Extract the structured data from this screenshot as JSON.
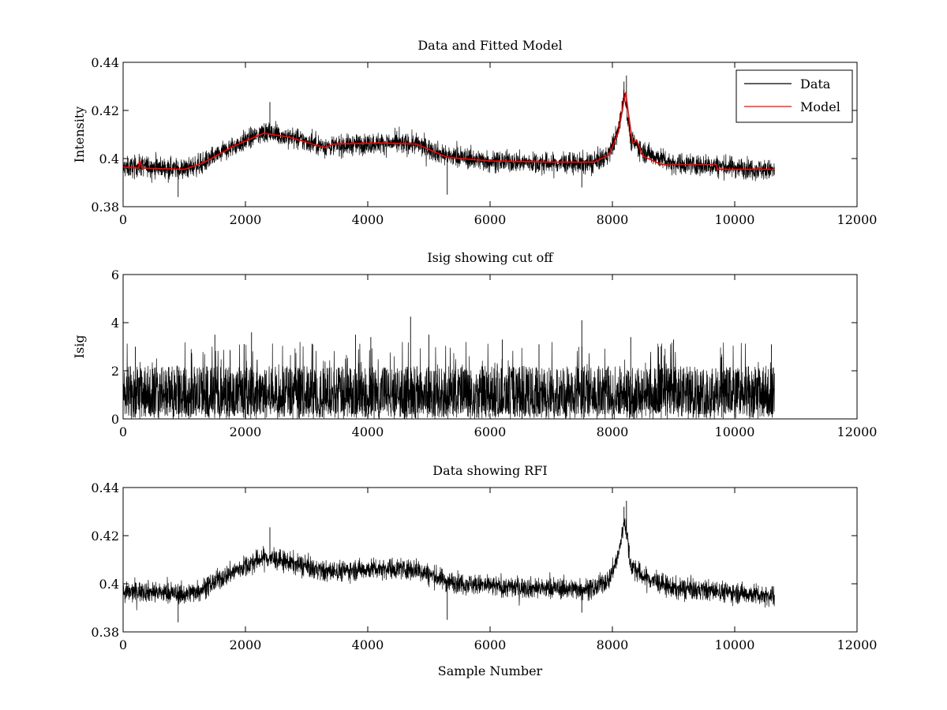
{
  "chart_data": [
    {
      "type": "line",
      "title": "Data and Fitted Model",
      "xlabel": "",
      "ylabel": "Intensity",
      "xlim": [
        0,
        12000
      ],
      "ylim": [
        0.38,
        0.44
      ],
      "xticks": [
        0,
        2000,
        4000,
        6000,
        8000,
        10000,
        12000
      ],
      "xtick_labels": [
        "0",
        "2000",
        "4000",
        "6000",
        "8000",
        "10000",
        "12000"
      ],
      "yticks": [
        0.38,
        0.4,
        0.42,
        0.44
      ],
      "ytick_labels": [
        "0.38",
        "0.4",
        "0.42",
        "0.44"
      ],
      "legend": {
        "placement": "top-right",
        "entries": [
          "Data",
          "Model"
        ]
      },
      "series": [
        {
          "name": "Data",
          "color": "#000000",
          "render": "noisy_band",
          "x_end": 10650,
          "noise": 0.0038,
          "envelope": [
            [
              0,
              0.396
            ],
            [
              300,
              0.397
            ],
            [
              1000,
              0.3955
            ],
            [
              1300,
              0.398
            ],
            [
              1800,
              0.405
            ],
            [
              2300,
              0.411
            ],
            [
              2700,
              0.409
            ],
            [
              3300,
              0.405
            ],
            [
              3600,
              0.4055
            ],
            [
              4200,
              0.4065
            ],
            [
              4800,
              0.406
            ],
            [
              5300,
              0.401
            ],
            [
              6000,
              0.399
            ],
            [
              7000,
              0.398
            ],
            [
              7700,
              0.398
            ],
            [
              7950,
              0.402
            ],
            [
              8100,
              0.412
            ],
            [
              8200,
              0.427
            ],
            [
              8300,
              0.408
            ],
            [
              8500,
              0.403
            ],
            [
              9000,
              0.398
            ],
            [
              9700,
              0.397
            ],
            [
              10650,
              0.395
            ]
          ],
          "spikes": [
            [
              2400,
              0.4235
            ],
            [
              8230,
              0.4345
            ],
            [
              8190,
              0.432
            ],
            [
              5300,
              0.385
            ],
            [
              7500,
              0.388
            ],
            [
              900,
              0.384
            ]
          ]
        },
        {
          "name": "Model",
          "color": "#ff0000",
          "render": "smooth_line",
          "x_end": 10650,
          "points": [
            [
              0,
              0.3965
            ],
            [
              250,
              0.396
            ],
            [
              280,
              0.399
            ],
            [
              310,
              0.396
            ],
            [
              1000,
              0.3955
            ],
            [
              1300,
              0.398
            ],
            [
              1800,
              0.405
            ],
            [
              2300,
              0.4105
            ],
            [
              2700,
              0.409
            ],
            [
              3300,
              0.4045
            ],
            [
              3450,
              0.406
            ],
            [
              4200,
              0.4065
            ],
            [
              4800,
              0.406
            ],
            [
              5300,
              0.4005
            ],
            [
              6000,
              0.399
            ],
            [
              7000,
              0.3985
            ],
            [
              7700,
              0.3985
            ],
            [
              7950,
              0.4015
            ],
            [
              8100,
              0.411
            ],
            [
              8180,
              0.4225
            ],
            [
              8220,
              0.4275
            ],
            [
              8260,
              0.419
            ],
            [
              8330,
              0.4065
            ],
            [
              8400,
              0.4075
            ],
            [
              8500,
              0.401
            ],
            [
              8800,
              0.3975
            ],
            [
              9000,
              0.3975
            ],
            [
              9700,
              0.3975
            ],
            [
              9720,
              0.3955
            ],
            [
              10650,
              0.3955
            ]
          ]
        }
      ]
    },
    {
      "type": "line",
      "title": "Isig showing cut off",
      "xlabel": "",
      "ylabel": "Isig",
      "xlim": [
        0,
        12000
      ],
      "ylim": [
        0,
        6
      ],
      "xticks": [
        0,
        2000,
        4000,
        6000,
        8000,
        10000,
        12000
      ],
      "xtick_labels": [
        "0",
        "2000",
        "4000",
        "6000",
        "8000",
        "10000",
        "12000"
      ],
      "yticks": [
        0,
        2,
        4,
        6
      ],
      "ytick_labels": [
        "0",
        "2",
        "4",
        "6"
      ],
      "series": [
        {
          "name": "Isig",
          "color": "#000000",
          "render": "spiky_band",
          "x_end": 10650,
          "base_low": 0.2,
          "base_high": 2.1,
          "spikes": [
            [
              4700,
              4.25
            ],
            [
              7500,
              4.1
            ],
            [
              1500,
              3.5
            ],
            [
              2100,
              3.6
            ],
            [
              3800,
              3.5
            ],
            [
              4050,
              3.4
            ],
            [
              5000,
              3.5
            ],
            [
              6200,
              3.3
            ],
            [
              8300,
              3.4
            ],
            [
              9000,
              3.3
            ],
            [
              10600,
              3.1
            ],
            [
              200,
              3.0
            ],
            [
              3100,
              3.1
            ],
            [
              6800,
              3.1
            ]
          ]
        }
      ]
    },
    {
      "type": "line",
      "title": "Data showing RFI",
      "xlabel": "Sample Number",
      "ylabel": "",
      "xlim": [
        0,
        12000
      ],
      "ylim": [
        0.38,
        0.44
      ],
      "xticks": [
        0,
        2000,
        4000,
        6000,
        8000,
        10000,
        12000
      ],
      "xtick_labels": [
        "0",
        "2000",
        "4000",
        "6000",
        "8000",
        "10000",
        "12000"
      ],
      "yticks": [
        0.38,
        0.4,
        0.42,
        0.44
      ],
      "ytick_labels": [
        "0.38",
        "0.4",
        "0.42",
        "0.44"
      ],
      "series": [
        {
          "name": "Data",
          "color": "#000000",
          "render": "noisy_band",
          "x_end": 10650,
          "noise": 0.0038,
          "envelope": [
            [
              0,
              0.396
            ],
            [
              300,
              0.397
            ],
            [
              1000,
              0.3955
            ],
            [
              1300,
              0.398
            ],
            [
              1800,
              0.405
            ],
            [
              2300,
              0.411
            ],
            [
              2700,
              0.409
            ],
            [
              3300,
              0.405
            ],
            [
              3600,
              0.4055
            ],
            [
              4200,
              0.4065
            ],
            [
              4800,
              0.406
            ],
            [
              5300,
              0.401
            ],
            [
              6000,
              0.399
            ],
            [
              7000,
              0.398
            ],
            [
              7700,
              0.398
            ],
            [
              7950,
              0.402
            ],
            [
              8100,
              0.412
            ],
            [
              8200,
              0.427
            ],
            [
              8300,
              0.408
            ],
            [
              8500,
              0.403
            ],
            [
              9000,
              0.398
            ],
            [
              9700,
              0.397
            ],
            [
              10650,
              0.395
            ]
          ],
          "spikes": [
            [
              2400,
              0.4235
            ],
            [
              8230,
              0.4345
            ],
            [
              8190,
              0.432
            ],
            [
              5300,
              0.385
            ],
            [
              7500,
              0.388
            ],
            [
              900,
              0.384
            ]
          ]
        }
      ]
    }
  ]
}
